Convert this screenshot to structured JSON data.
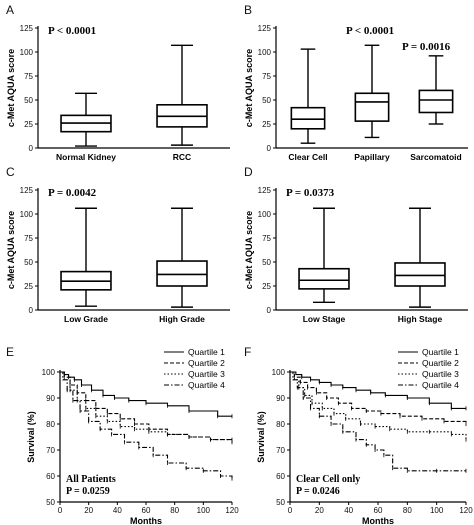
{
  "chart_data": [
    {
      "panel": "A",
      "type": "box",
      "ylabel": "c-Met AQUA score",
      "ylim": [
        0,
        125
      ],
      "yticks": [
        0,
        25,
        50,
        75,
        100,
        125
      ],
      "annotation": "P < 0.0001",
      "categories": [
        "Normal Kidney",
        "RCC"
      ],
      "boxes": [
        {
          "min": 2,
          "q1": 17,
          "median": 26,
          "q3": 34,
          "max": 57
        },
        {
          "min": 3,
          "q1": 22,
          "median": 33,
          "q3": 45,
          "max": 107
        }
      ]
    },
    {
      "panel": "B",
      "type": "box",
      "ylabel": "c-Met AQUA score",
      "ylim": [
        0,
        125
      ],
      "yticks": [
        0,
        25,
        50,
        75,
        100,
        125
      ],
      "annotations": [
        "P < 0.0001",
        "P = 0.0016"
      ],
      "categories": [
        "Clear Cell",
        "Papillary",
        "Sarcomatoid"
      ],
      "boxes": [
        {
          "min": 5,
          "q1": 20,
          "median": 30,
          "q3": 42,
          "max": 103
        },
        {
          "min": 11,
          "q1": 28,
          "median": 48,
          "q3": 57,
          "max": 107
        },
        {
          "min": 25,
          "q1": 37,
          "median": 50,
          "q3": 60,
          "max": 96
        }
      ]
    },
    {
      "panel": "C",
      "type": "box",
      "ylabel": "c-Met AQUA score",
      "ylim": [
        0,
        125
      ],
      "yticks": [
        0,
        25,
        50,
        75,
        100,
        125
      ],
      "annotation": "P = 0.0042",
      "categories": [
        "Low Grade",
        "High Grade"
      ],
      "boxes": [
        {
          "min": 4,
          "q1": 21,
          "median": 30,
          "q3": 40,
          "max": 106
        },
        {
          "min": 3,
          "q1": 25,
          "median": 37,
          "q3": 51,
          "max": 106
        }
      ]
    },
    {
      "panel": "D",
      "type": "box",
      "ylabel": "c-Met AQUA score",
      "ylim": [
        0,
        125
      ],
      "yticks": [
        0,
        25,
        50,
        75,
        100,
        125
      ],
      "annotation": "P = 0.0373",
      "categories": [
        "Low Stage",
        "High Stage"
      ],
      "boxes": [
        {
          "min": 8,
          "q1": 22,
          "median": 31,
          "q3": 43,
          "max": 106
        },
        {
          "min": 3,
          "q1": 25,
          "median": 36,
          "q3": 49,
          "max": 106
        }
      ]
    },
    {
      "panel": "E",
      "type": "line",
      "step": true,
      "xlabel": "Months",
      "ylabel": "Survival (%)",
      "xlim": [
        0,
        120
      ],
      "xticks": [
        0,
        20,
        40,
        60,
        80,
        100,
        120
      ],
      "ylim": [
        50,
        100
      ],
      "yticks": [
        50,
        60,
        70,
        80,
        90,
        100
      ],
      "annotation_title": "All Patients",
      "annotation_p": "P = 0.0259",
      "legend_position": "top-right",
      "series": [
        {
          "name": "Quartile 1",
          "dash": "",
          "x": [
            0,
            3,
            6,
            10,
            15,
            22,
            30,
            38,
            48,
            60,
            75,
            90,
            110,
            120
          ],
          "y": [
            100,
            99,
            98,
            97,
            95,
            93,
            91,
            90,
            89,
            88,
            87,
            85,
            83,
            83
          ]
        },
        {
          "name": "Quartile 2",
          "dash": "4,2",
          "x": [
            0,
            3,
            7,
            12,
            18,
            25,
            33,
            42,
            52,
            62,
            75,
            90,
            105,
            120
          ],
          "y": [
            100,
            98,
            95,
            92,
            89,
            86,
            84,
            82,
            80,
            78,
            76,
            75,
            74,
            74
          ]
        },
        {
          "name": "Quartile 3",
          "dash": "1.5,2",
          "x": [
            0,
            3,
            7,
            12,
            18,
            25,
            33,
            42,
            52,
            62,
            75,
            90,
            105,
            120
          ],
          "y": [
            100,
            97,
            93,
            89,
            86,
            83,
            81,
            79,
            78,
            77,
            76,
            75,
            74,
            73
          ]
        },
        {
          "name": "Quartile 4",
          "dash": "5,2,1.5,2",
          "x": [
            0,
            2,
            5,
            9,
            14,
            20,
            28,
            36,
            45,
            55,
            65,
            75,
            88,
            100,
            112,
            120
          ],
          "y": [
            100,
            97,
            93,
            89,
            85,
            81,
            78,
            76,
            73,
            71,
            68,
            65,
            63,
            62,
            60,
            59
          ]
        }
      ]
    },
    {
      "panel": "F",
      "type": "line",
      "step": true,
      "xlabel": "Months",
      "ylabel": "Survival (%)",
      "xlim": [
        0,
        120
      ],
      "xticks": [
        0,
        20,
        40,
        60,
        80,
        100,
        120
      ],
      "ylim": [
        50,
        100
      ],
      "yticks": [
        50,
        60,
        70,
        80,
        90,
        100
      ],
      "annotation_title": "Clear Cell only",
      "annotation_p": "P = 0.0246",
      "legend_position": "top-right",
      "series": [
        {
          "name": "Quartile 1",
          "dash": "",
          "x": [
            0,
            4,
            8,
            14,
            20,
            28,
            36,
            45,
            55,
            65,
            80,
            95,
            110,
            120
          ],
          "y": [
            100,
            99,
            98,
            97,
            96,
            95,
            94,
            93,
            92,
            91,
            90,
            88,
            86,
            86
          ]
        },
        {
          "name": "Quartile 2",
          "dash": "4,2",
          "x": [
            0,
            3,
            7,
            12,
            18,
            25,
            33,
            42,
            52,
            62,
            75,
            90,
            105,
            120
          ],
          "y": [
            100,
            98,
            96,
            94,
            92,
            90,
            88,
            86,
            85,
            84,
            83,
            82,
            81,
            80
          ]
        },
        {
          "name": "Quartile 3",
          "dash": "1.5,2",
          "x": [
            0,
            3,
            6,
            10,
            15,
            22,
            30,
            38,
            48,
            58,
            68,
            80,
            95,
            110,
            120
          ],
          "y": [
            100,
            97,
            94,
            91,
            88,
            86,
            84,
            82,
            80,
            79,
            78,
            77,
            77,
            76,
            74
          ]
        },
        {
          "name": "Quartile 4",
          "dash": "5,2,1.5,2",
          "x": [
            0,
            2,
            5,
            9,
            14,
            20,
            28,
            36,
            45,
            52,
            58,
            64,
            70,
            80,
            100,
            120
          ],
          "y": [
            100,
            97,
            94,
            90,
            86,
            83,
            80,
            77,
            74,
            72,
            70,
            68,
            63,
            62,
            62,
            62
          ]
        }
      ]
    }
  ]
}
